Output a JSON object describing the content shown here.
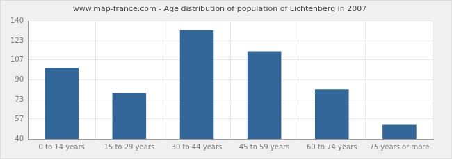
{
  "chart_data": {
    "type": "bar",
    "title": "www.map-france.com - Age distribution of population of Lichtenberg in 2007",
    "categories": [
      "0 to 14 years",
      "15 to 29 years",
      "30 to 44 years",
      "45 to 59 years",
      "60 to 74 years",
      "75 years or more"
    ],
    "values": [
      100,
      79,
      132,
      114,
      82,
      52
    ],
    "color": "#336699",
    "ylim": [
      40,
      140
    ],
    "yticks": [
      40,
      57,
      73,
      90,
      107,
      123,
      140
    ],
    "grid": true
  }
}
